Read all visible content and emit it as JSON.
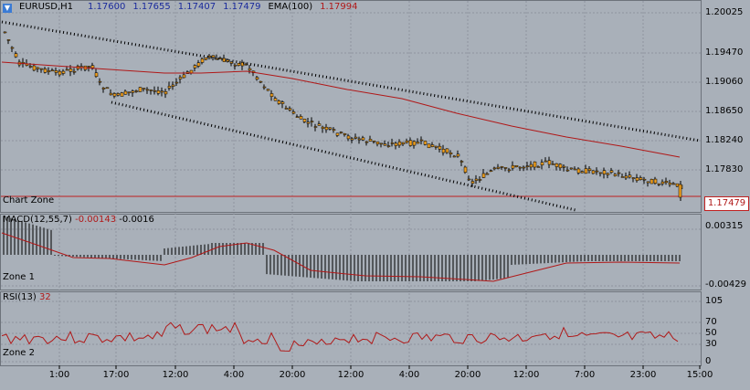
{
  "header": {
    "symbol": "EURUSD,H1",
    "open": "1.17600",
    "high": "1.17655",
    "low": "1.17407",
    "close": "1.17479",
    "ema_label": "EMA(100)",
    "ema_value": "1.17994"
  },
  "current_price": "1.17479",
  "price_axis": [
    "1.20025",
    "1.19470",
    "1.19060",
    "1.18650",
    "1.18240",
    "1.17830"
  ],
  "main_zone_label": "Chart Zone",
  "macd": {
    "label": "MACD(12,55,7)",
    "value1": "-0.00143",
    "value2": "-0.0016",
    "zone_label": "Zone 1",
    "axis": [
      "0.00315",
      "-0.00429"
    ]
  },
  "rsi": {
    "label": "RSI(13)",
    "value": "32",
    "zone_label": "Zone 2",
    "axis": [
      "105",
      "70",
      "50",
      "30",
      "0"
    ]
  },
  "time_axis": [
    "1:00",
    "17:00",
    "12:00",
    "4:00",
    "20:00",
    "12:00",
    "4:00",
    "20:00",
    "12:00",
    "7:00",
    "23:00",
    "15:00"
  ],
  "colors": {
    "background": "#a9b0b9",
    "grid": "#8e959e",
    "candle": "#f0a020",
    "ema": "#b01818",
    "trendline": "#000000"
  },
  "icons": {
    "symbol_menu": "down-arrow-icon"
  }
}
